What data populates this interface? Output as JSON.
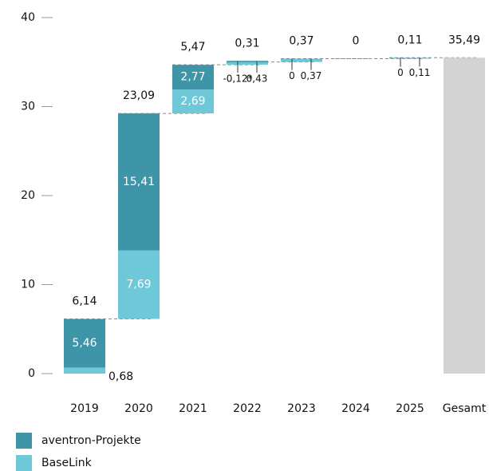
{
  "chart_data": {
    "type": "waterfall",
    "categories": [
      "2019",
      "2020",
      "2021",
      "2022",
      "2023",
      "2024",
      "2025",
      "Gesamt"
    ],
    "series": [
      {
        "name": "BaseLink",
        "color": "#6fc8d8",
        "values": [
          0.68,
          7.69,
          2.69,
          0.43,
          0.37,
          0,
          0.11,
          null
        ],
        "value_labels": [
          "0,68",
          "7,69",
          "2,69",
          "0,43",
          "0,37",
          null,
          "0,11",
          null
        ]
      },
      {
        "name": "aventron-Projekte",
        "color": "#3f95a8",
        "values": [
          5.46,
          15.41,
          2.77,
          -0.12,
          0,
          0,
          0,
          null
        ],
        "value_labels": [
          "5,46",
          "15,41",
          "2,77",
          "-0,12*",
          "0",
          null,
          "0",
          null
        ]
      }
    ],
    "totals": [
      6.14,
      23.09,
      5.47,
      0.31,
      0.37,
      0,
      0.11,
      35.49
    ],
    "total_labels": [
      "6,14",
      "23,09",
      "5,47",
      "0,31",
      "0,37",
      "0",
      "0,11",
      "35,49"
    ],
    "total_color": "#d3d3d3",
    "ylim": [
      0,
      40
    ],
    "yticks": [
      0,
      10,
      20,
      30,
      40
    ]
  }
}
